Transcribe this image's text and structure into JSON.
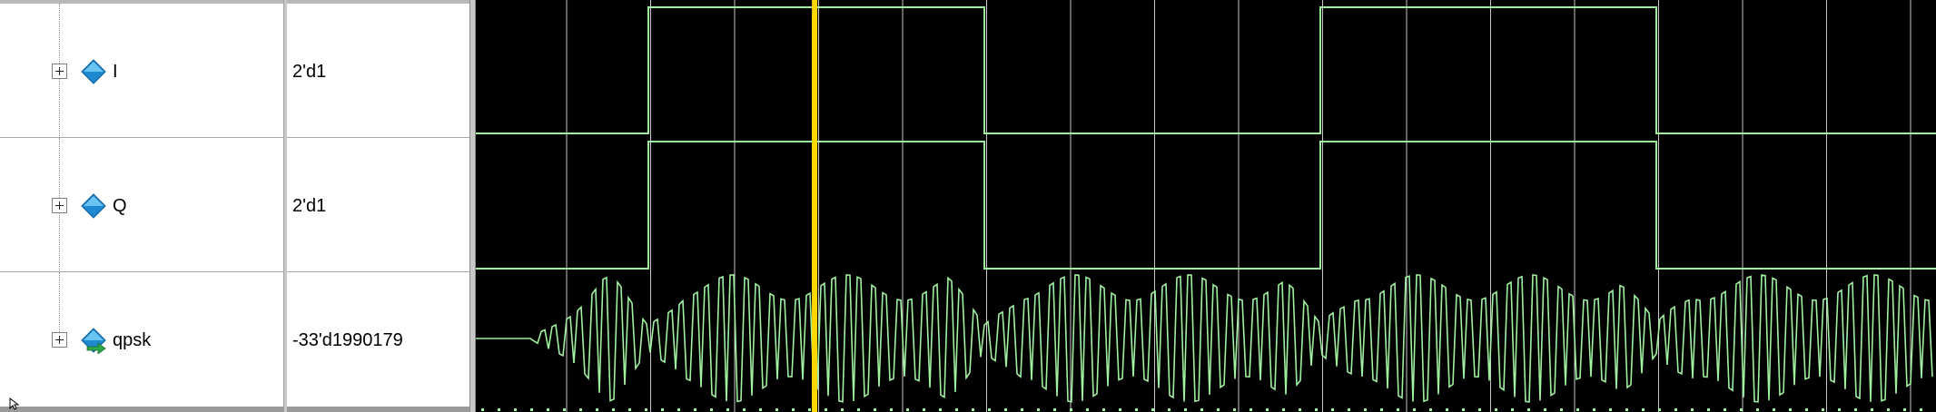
{
  "signals": [
    {
      "name": "I",
      "value": "2'd1",
      "icon": "diamond-signal-icon"
    },
    {
      "name": "Q",
      "value": "2'd1",
      "icon": "diamond-signal-icon"
    },
    {
      "name": "qpsk",
      "value": "-33'd1990179",
      "icon": "analog-signal-icon"
    }
  ],
  "colors": {
    "background": "#000000",
    "grid": "#c8c8c8",
    "waveform": "#a0f0a0",
    "cursor": "#ffd800",
    "icon_blue": "#2a9ad8"
  },
  "waveforms": {
    "I_level": [
      0,
      1,
      0,
      1,
      0
    ],
    "Q_level": [
      0,
      1,
      0,
      1,
      0
    ],
    "cursor_fraction": 0.232
  }
}
